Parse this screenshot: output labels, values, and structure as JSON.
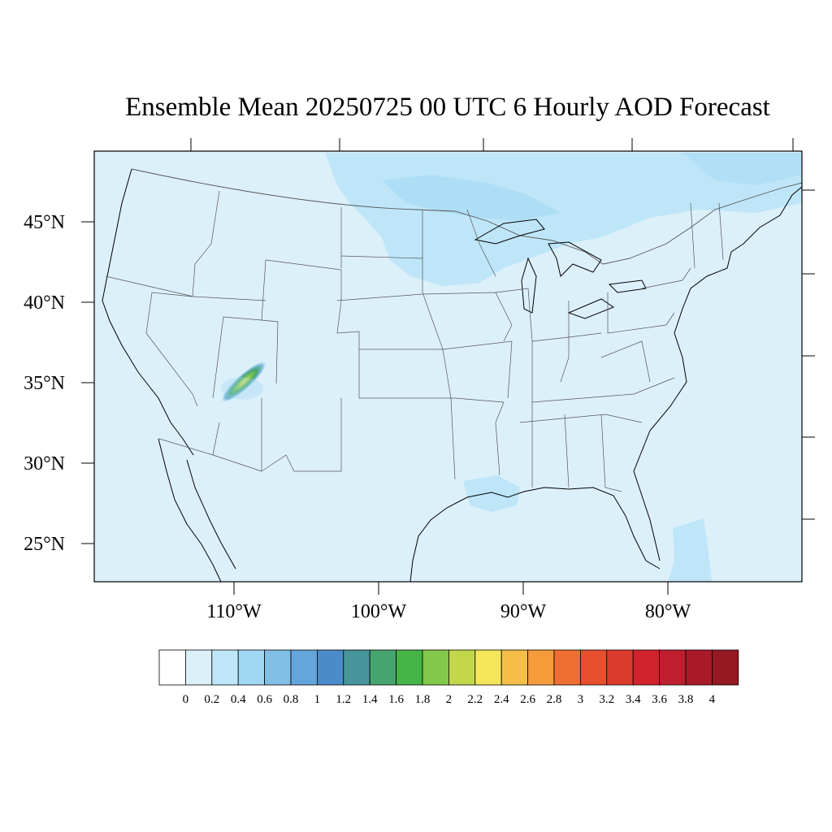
{
  "title": "Ensemble Mean 20250725 00 UTC 6 Hourly AOD Forecast",
  "map": {
    "background_color": "#dcf0fa",
    "boundary_color": "#555555",
    "coast_color": "#000000",
    "lat_labels": [
      "45°N",
      "40°N",
      "35°N",
      "30°N",
      "25°N"
    ],
    "lon_labels": [
      "110°W",
      "100°W",
      "90°W",
      "80°W"
    ]
  },
  "colorbar": {
    "labels": [
      "0",
      "0.2",
      "0.4",
      "0.6",
      "0.8",
      "1",
      "1.2",
      "1.4",
      "1.6",
      "1.8",
      "2",
      "2.2",
      "2.4",
      "2.6",
      "2.8",
      "3",
      "3.2",
      "3.4",
      "3.6",
      "3.8",
      "4"
    ],
    "colors": [
      "#ffffff",
      "#dcf0fa",
      "#bee6f8",
      "#a0d7f3",
      "#82bee6",
      "#64a5dc",
      "#4b8cc8",
      "#46969b",
      "#46a56e",
      "#46b446",
      "#82c84b",
      "#c3d74b",
      "#f5e65a",
      "#f5be46",
      "#f59b3c",
      "#f06e32",
      "#e6502d",
      "#dc3c2d",
      "#d2232d",
      "#be1e2d",
      "#aa1928",
      "#961923"
    ]
  },
  "plumes": [
    {
      "region": "northern-plains-great-lakes",
      "level": "0.2-0.4",
      "color": "#bee6f8"
    },
    {
      "region": "louisiana",
      "level": "0.2-0.4",
      "color": "#bee6f8"
    },
    {
      "region": "bahamas",
      "level": "0.2-0.4",
      "color": "#bee6f8"
    },
    {
      "region": "arizona-hotspot",
      "level": "2.2-2.4",
      "color": "#f5e65a"
    }
  ]
}
